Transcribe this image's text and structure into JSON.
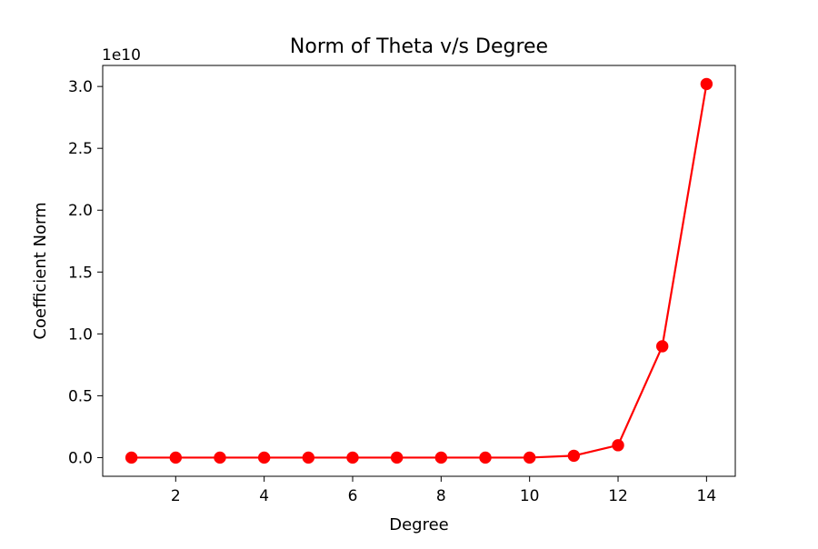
{
  "chart_data": {
    "type": "line",
    "title": "Norm of Theta v/s Degree",
    "xlabel": "Degree",
    "ylabel": "Coefficient Norm",
    "y_scale_label": "1e10",
    "y_multiplier": 10000000000,
    "x": [
      1,
      2,
      3,
      4,
      5,
      6,
      7,
      8,
      9,
      10,
      11,
      12,
      13,
      14
    ],
    "series": [
      {
        "values": [
          0,
          0,
          0,
          0,
          0,
          0,
          0,
          0,
          0,
          0,
          0.015,
          0.1,
          0.9,
          3.02
        ],
        "color": "#ff0000",
        "marker": "circle"
      }
    ],
    "xlim": [
      0.35,
      14.65
    ],
    "ylim": [
      -0.151,
      3.17
    ],
    "x_ticks": [
      2,
      4,
      6,
      8,
      10,
      12,
      14
    ],
    "x_tick_labels": [
      "2",
      "4",
      "6",
      "8",
      "10",
      "12",
      "14"
    ],
    "y_ticks": [
      0.0,
      0.5,
      1.0,
      1.5,
      2.0,
      2.5,
      3.0
    ],
    "y_tick_labels": [
      "0.0",
      "0.5",
      "1.0",
      "1.5",
      "2.0",
      "2.5",
      "3.0"
    ],
    "grid": false,
    "legend": "none"
  }
}
